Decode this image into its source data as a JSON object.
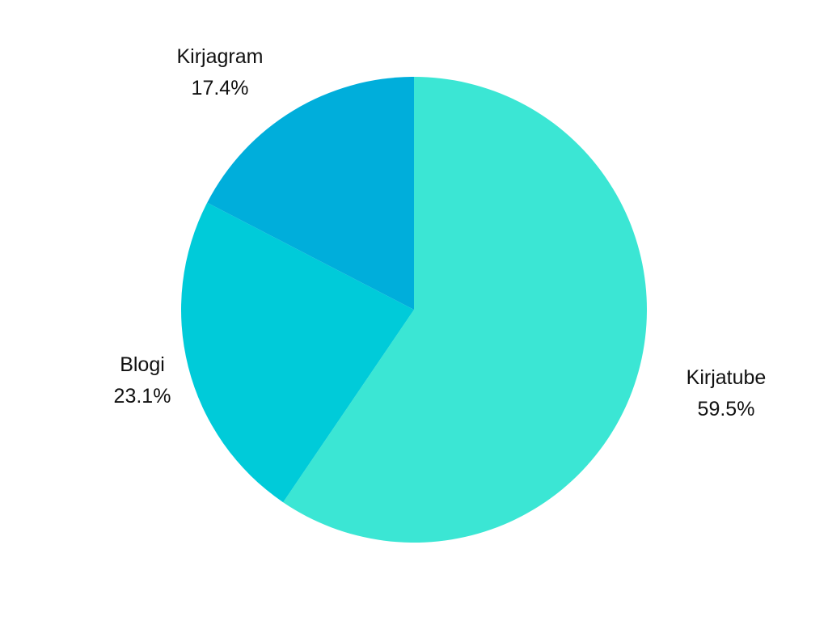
{
  "chart_data": {
    "type": "pie",
    "title": "",
    "start_angle": "top",
    "direction": "clockwise",
    "slices": [
      {
        "label": "Kirjatube",
        "value": 59.5,
        "display": "59.5%",
        "color": "#3BE6D4"
      },
      {
        "label": "Blogi",
        "value": 23.1,
        "display": "23.1%",
        "color": "#00CBD9"
      },
      {
        "label": "Kirjagram",
        "value": 17.4,
        "display": "17.4%",
        "color": "#00AEDB"
      }
    ],
    "legend": "none"
  }
}
